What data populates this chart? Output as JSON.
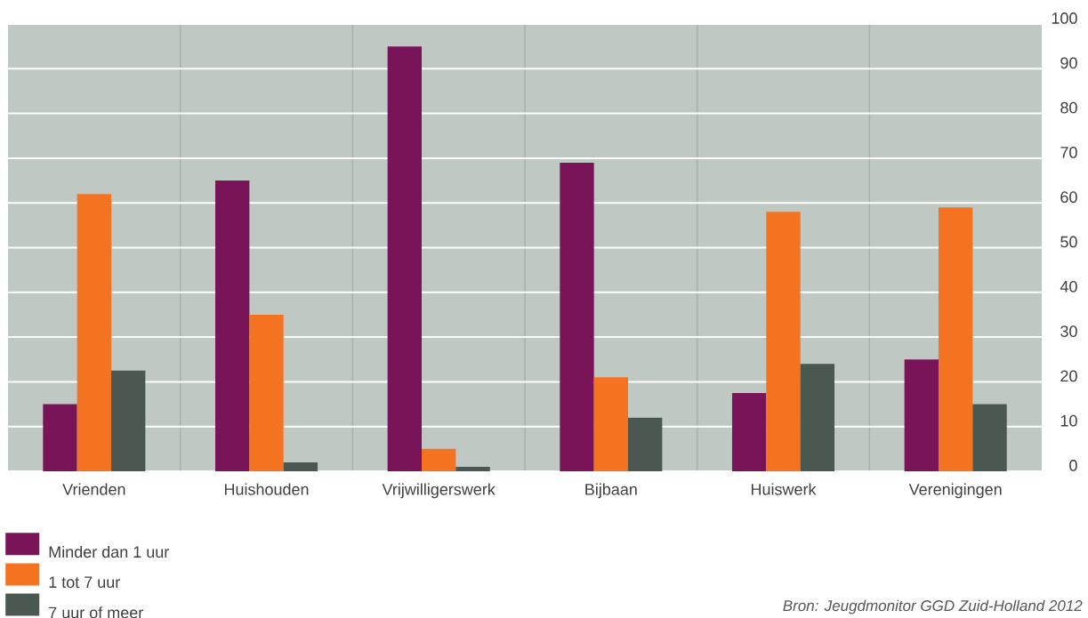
{
  "chart_data": {
    "type": "bar",
    "categories": [
      "Vrienden",
      "Huishouden",
      "Vrijwilligerswerk",
      "Bijbaan",
      "Huiswerk",
      "Verenigingen"
    ],
    "series": [
      {
        "name": "Minder dan 1 uur",
        "color": "#7a1459",
        "values": [
          15,
          65,
          95,
          69,
          17.5,
          25
        ]
      },
      {
        "name": "1 tot 7 uur",
        "color": "#f37321",
        "values": [
          62,
          35,
          5,
          21,
          58,
          59
        ]
      },
      {
        "name": "7 uur of meer",
        "color": "#4a5851",
        "values": [
          22.5,
          2,
          1,
          12,
          24,
          15
        ]
      }
    ],
    "ylim": [
      0,
      100
    ],
    "yticks": [
      0,
      10,
      20,
      30,
      40,
      50,
      60,
      70,
      80,
      90,
      100
    ],
    "grid": true,
    "legend": "bottom left",
    "annotations": [
      "Bron: Jeugdmonitor GGD Zuid-Holland 2012"
    ]
  }
}
